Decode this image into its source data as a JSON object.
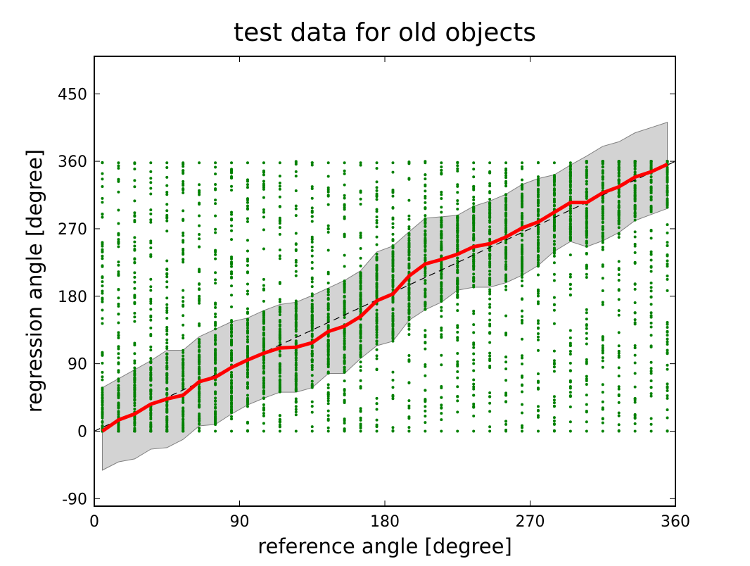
{
  "chart_data": {
    "type": "line",
    "title": "test data for old objects",
    "xlabel": "reference angle [degree]",
    "ylabel": "regression angle [degree]",
    "xlim": [
      0,
      360
    ],
    "ylim": [
      -100,
      500
    ],
    "xticks": [
      0,
      90,
      180,
      270,
      360
    ],
    "yticks": [
      -90,
      0,
      90,
      180,
      270,
      360,
      450
    ],
    "grid": false,
    "colors": {
      "scatter": "#008000",
      "mean": "#ff0000",
      "band": "#d3d3d3",
      "band_edge": "#808080",
      "reference": "#000000"
    },
    "x": [
      5,
      15,
      25,
      35,
      45,
      55,
      65,
      75,
      85,
      95,
      105,
      115,
      125,
      135,
      145,
      155,
      165,
      175,
      185,
      195,
      205,
      215,
      225,
      235,
      245,
      255,
      265,
      275,
      285,
      295,
      305,
      315,
      325,
      335,
      345,
      355
    ],
    "series": [
      {
        "name": "mean regression angle",
        "style": "red solid thick",
        "values": [
          0,
          15,
          23,
          36,
          43,
          48,
          66,
          72,
          85,
          95,
          104,
          111,
          112,
          118,
          133,
          140,
          153,
          174,
          183,
          207,
          223,
          229,
          236,
          246,
          250,
          259,
          271,
          279,
          292,
          305,
          305,
          318,
          326,
          339,
          346,
          356
        ]
      },
      {
        "name": "band upper",
        "style": "gray fill",
        "values": [
          58,
          70,
          82,
          94,
          108,
          108,
          126,
          136,
          146,
          151,
          161,
          169,
          172,
          181,
          191,
          201,
          214,
          239,
          247,
          266,
          284,
          286,
          288,
          300,
          307,
          316,
          329,
          337,
          342,
          355,
          367,
          380,
          386,
          398,
          405,
          412
        ]
      },
      {
        "name": "band lower",
        "style": "gray fill",
        "values": [
          -52,
          -41,
          -37,
          -24,
          -22,
          -11,
          7,
          9,
          23,
          35,
          44,
          52,
          52,
          58,
          77,
          77,
          97,
          114,
          120,
          148,
          162,
          172,
          188,
          192,
          192,
          198,
          208,
          221,
          240,
          253,
          246,
          254,
          265,
          281,
          289,
          297
        ]
      },
      {
        "name": "identity",
        "style": "black dashed",
        "x": [
          0,
          360
        ],
        "values": [
          0,
          360
        ]
      }
    ],
    "scatter": {
      "name": "test samples",
      "x_columns": "same as x",
      "y_range": [
        0,
        360
      ]
    }
  }
}
